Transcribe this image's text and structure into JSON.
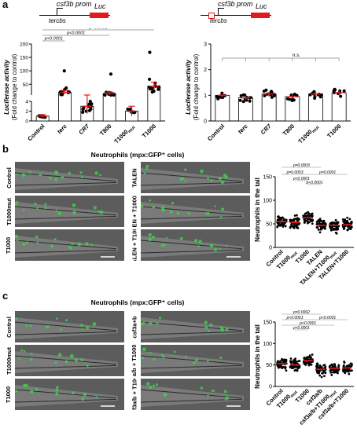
{
  "panels": {
    "a": {
      "letter": "a",
      "construct_left": {
        "prom": "csf3b prom",
        "luc": "Luc",
        "site": "tercbs"
      },
      "construct_right": {
        "prom": "csf3b prom",
        "luc": "Luc",
        "site": "tercbs"
      },
      "ylabel_line1": "Luciferase activity",
      "ylabel_line2": "(Fold change to control)"
    },
    "b": {
      "letter": "b",
      "title": "Neutrophils (mpx:GFP⁺ cells)",
      "image_labels_left": [
        "Control",
        "T1000mut",
        "T1000"
      ],
      "image_labels_right": [
        "TALEN",
        "TALEN + T1000mut",
        "TALEN + T1000"
      ],
      "ylabel": "Neutrophils in the tail"
    },
    "c": {
      "letter": "c",
      "title": "Neutrophils (mpx:GFP⁺ cells)",
      "image_labels_left": [
        "Control",
        "T1000mut",
        "T1000"
      ],
      "image_labels_right": [
        "csf3a+b",
        "csf3a/b + T1000mut",
        "csf3a/b + T1000"
      ],
      "ylabel": "Neutrophils in the tail"
    }
  },
  "chart_data": [
    {
      "id": "a-left",
      "type": "bar",
      "categories": [
        "Control",
        "terc",
        "CR7",
        "T800",
        "T1000mut",
        "T1000"
      ],
      "values": [
        1,
        20,
        3,
        16,
        2,
        43
      ],
      "errors": [
        0.3,
        7,
        1.5,
        6,
        1,
        15
      ],
      "ylabel": "Luciferase activity (Fold change to control)",
      "yticks_lower": [
        0,
        2,
        4
      ],
      "yticks_upper": [
        50,
        100,
        150,
        200
      ],
      "ybreak": true,
      "annotations": [
        "p<0.0001",
        "p<0.0001",
        "p=0.0001"
      ]
    },
    {
      "id": "a-right",
      "type": "bar",
      "categories": [
        "Control",
        "terc",
        "CR7",
        "T800",
        "T1000mut",
        "T1000"
      ],
      "values": [
        1.0,
        0.9,
        1.05,
        0.95,
        1.05,
        1.1
      ],
      "errors": [
        0.08,
        0.08,
        0.1,
        0.08,
        0.1,
        0.1
      ],
      "ylabel": "Luciferase activity (Fold change to control)",
      "ylim": [
        0,
        3
      ],
      "yticks": [
        0,
        1,
        2,
        3
      ],
      "annotations": [
        "n.s."
      ]
    },
    {
      "id": "b-scatter",
      "type": "scatter",
      "categories": [
        "Control",
        "T1000mut",
        "T1000",
        "TALEN",
        "TALEN+T1000mut",
        "TALEN+T1000"
      ],
      "means": [
        55,
        53,
        63,
        47,
        47,
        48
      ],
      "ylabel": "Neutrophils in the tail",
      "ylim": [
        0,
        150
      ],
      "yticks": [
        0,
        50,
        100,
        150
      ],
      "annotations": [
        "p=0.0003",
        "p=0.0053",
        "p<0.0001",
        "p=0.0001",
        "p<0.0001"
      ]
    },
    {
      "id": "c-scatter",
      "type": "scatter",
      "categories": [
        "Control",
        "T1000mut",
        "T1000",
        "csf3a/b",
        "csf3a/b+T1000mut",
        "csf3a/b+T1000"
      ],
      "means": [
        53,
        50,
        60,
        40,
        42,
        43
      ],
      "ylabel": "Neutrophils in the tail",
      "ylim": [
        0,
        150
      ],
      "yticks": [
        0,
        50,
        100,
        150
      ],
      "annotations": [
        "p=0.0002",
        "p<0.0001",
        "p<0.0001",
        "p<0.0001",
        "p<0.0001"
      ]
    }
  ]
}
